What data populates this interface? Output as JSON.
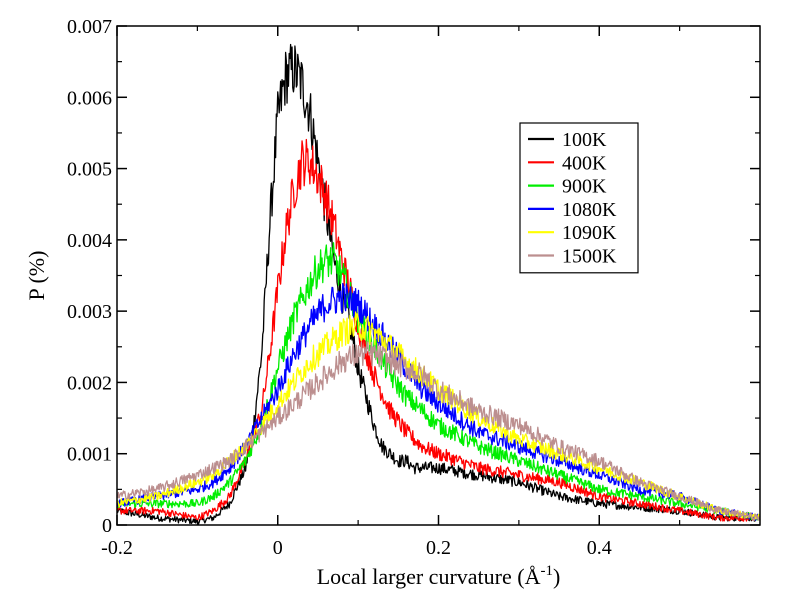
{
  "chart_data": {
    "type": "line",
    "title": "",
    "xlabel": "Local larger curvature (Å",
    "xlabel_sup": "-1",
    "xlabel_close": ")",
    "ylabel": "P (%)",
    "xlim": [
      -0.2,
      0.6
    ],
    "ylim": [
      0,
      0.007
    ],
    "x_ticks": [
      -0.2,
      0,
      0.2,
      0.4
    ],
    "x_tick_labels": [
      "-0.2",
      "0",
      "0.2",
      "0.4"
    ],
    "y_ticks": [
      0,
      0.001,
      0.002,
      0.003,
      0.004,
      0.005,
      0.006,
      0.007
    ],
    "y_tick_labels": [
      "0",
      "0.001",
      "0.002",
      "0.003",
      "0.004",
      "0.005",
      "0.006",
      "0.007"
    ],
    "grid": false,
    "legend_position": "top-right",
    "series": [
      {
        "name": "100K",
        "color": "#000000",
        "x": [
          -0.2,
          -0.15,
          -0.1,
          -0.08,
          -0.06,
          -0.04,
          -0.03,
          -0.02,
          -0.01,
          0,
          0.01,
          0.02,
          0.03,
          0.04,
          0.05,
          0.06,
          0.07,
          0.08,
          0.09,
          0.1,
          0.11,
          0.12,
          0.13,
          0.14,
          0.15,
          0.16,
          0.17,
          0.2,
          0.25,
          0.3,
          0.35,
          0.4,
          0.45,
          0.5,
          0.55,
          0.6
        ],
        "y": [
          0.0002,
          0.0001,
          5e-05,
          0.0001,
          0.0003,
          0.0008,
          0.0014,
          0.0024,
          0.0042,
          0.0057,
          0.0063,
          0.0064,
          0.0062,
          0.0058,
          0.0051,
          0.0044,
          0.0037,
          0.0032,
          0.0028,
          0.0022,
          0.0018,
          0.0014,
          0.0011,
          0.001,
          0.0009,
          0.0009,
          0.0008,
          0.0008,
          0.0007,
          0.0006,
          0.0004,
          0.0003,
          0.00025,
          0.0002,
          0.0001,
          0.0001
        ]
      },
      {
        "name": "400K",
        "color": "#ff0000",
        "x": [
          -0.2,
          -0.15,
          -0.1,
          -0.08,
          -0.06,
          -0.04,
          -0.02,
          -0.01,
          0,
          0.01,
          0.02,
          0.03,
          0.04,
          0.05,
          0.06,
          0.07,
          0.08,
          0.09,
          0.1,
          0.12,
          0.14,
          0.16,
          0.18,
          0.2,
          0.25,
          0.3,
          0.35,
          0.4,
          0.45,
          0.5,
          0.55,
          0.6
        ],
        "y": [
          0.0002,
          0.0002,
          0.0001,
          0.0002,
          0.0004,
          0.0009,
          0.0016,
          0.0024,
          0.0033,
          0.0041,
          0.0047,
          0.0051,
          0.0051,
          0.0049,
          0.0046,
          0.0042,
          0.0037,
          0.0033,
          0.0028,
          0.0021,
          0.0016,
          0.0013,
          0.0011,
          0.001,
          0.0008,
          0.0007,
          0.0006,
          0.0004,
          0.0003,
          0.0002,
          0.0001,
          0.0001
        ]
      },
      {
        "name": "900K",
        "color": "#00ee00",
        "x": [
          -0.2,
          -0.15,
          -0.1,
          -0.08,
          -0.06,
          -0.04,
          -0.02,
          0,
          0.02,
          0.04,
          0.05,
          0.06,
          0.07,
          0.08,
          0.1,
          0.12,
          0.14,
          0.16,
          0.18,
          0.2,
          0.25,
          0.3,
          0.35,
          0.4,
          0.45,
          0.5,
          0.55,
          0.6
        ],
        "y": [
          0.0003,
          0.0003,
          0.0003,
          0.0004,
          0.0006,
          0.0009,
          0.0014,
          0.0022,
          0.0029,
          0.0034,
          0.0036,
          0.0037,
          0.0037,
          0.0035,
          0.0029,
          0.0025,
          0.0021,
          0.0018,
          0.0016,
          0.0014,
          0.0011,
          0.0009,
          0.0007,
          0.0005,
          0.0004,
          0.0003,
          0.0002,
          0.0001
        ]
      },
      {
        "name": "1080K",
        "color": "#0000ff",
        "x": [
          -0.2,
          -0.15,
          -0.1,
          -0.08,
          -0.06,
          -0.04,
          -0.02,
          0,
          0.02,
          0.04,
          0.06,
          0.08,
          0.1,
          0.12,
          0.14,
          0.16,
          0.18,
          0.2,
          0.25,
          0.3,
          0.35,
          0.4,
          0.45,
          0.5,
          0.55,
          0.6
        ],
        "y": [
          0.0003,
          0.0004,
          0.0005,
          0.0006,
          0.0008,
          0.0011,
          0.0015,
          0.0019,
          0.0024,
          0.0028,
          0.0031,
          0.0032,
          0.0031,
          0.0028,
          0.0025,
          0.0022,
          0.0019,
          0.0017,
          0.0013,
          0.0011,
          0.0009,
          0.0007,
          0.0005,
          0.0004,
          0.0002,
          0.0001
        ]
      },
      {
        "name": "1090K",
        "color": "#ffff00",
        "x": [
          -0.2,
          -0.15,
          -0.1,
          -0.08,
          -0.06,
          -0.04,
          -0.02,
          0,
          0.02,
          0.04,
          0.06,
          0.08,
          0.1,
          0.12,
          0.14,
          0.16,
          0.18,
          0.2,
          0.25,
          0.3,
          0.35,
          0.4,
          0.45,
          0.5,
          0.55,
          0.6
        ],
        "y": [
          0.0003,
          0.0004,
          0.0006,
          0.0007,
          0.0009,
          0.0011,
          0.0014,
          0.0017,
          0.002,
          0.0023,
          0.0025,
          0.0027,
          0.0028,
          0.0027,
          0.0025,
          0.0023,
          0.0021,
          0.0019,
          0.0015,
          0.0012,
          0.001,
          0.0008,
          0.0006,
          0.0004,
          0.0002,
          0.0001
        ]
      },
      {
        "name": "1500K",
        "color": "#bc8f8f",
        "x": [
          -0.2,
          -0.15,
          -0.1,
          -0.08,
          -0.06,
          -0.04,
          -0.02,
          0,
          0.02,
          0.04,
          0.06,
          0.08,
          0.1,
          0.12,
          0.14,
          0.16,
          0.18,
          0.2,
          0.25,
          0.3,
          0.35,
          0.4,
          0.45,
          0.5,
          0.55,
          0.6
        ],
        "y": [
          0.0004,
          0.0005,
          0.0007,
          0.0008,
          0.0009,
          0.0011,
          0.0013,
          0.0015,
          0.0017,
          0.0019,
          0.0021,
          0.0023,
          0.0024,
          0.0024,
          0.0023,
          0.0022,
          0.0021,
          0.0019,
          0.0016,
          0.0014,
          0.0011,
          0.0009,
          0.0006,
          0.0004,
          0.0002,
          0.0001
        ]
      }
    ]
  }
}
